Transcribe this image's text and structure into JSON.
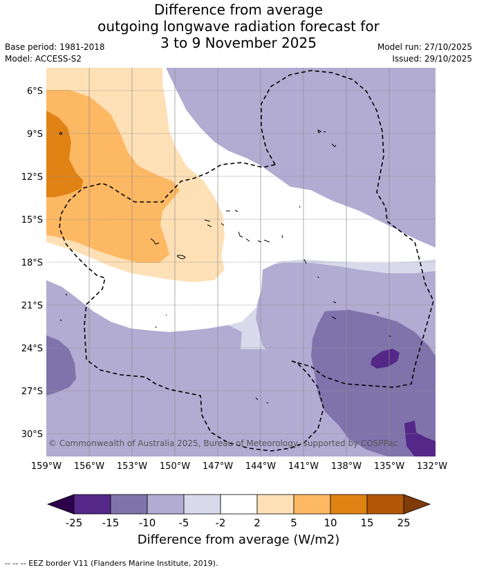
{
  "title": {
    "line1": "Difference from average",
    "line2": "outgoing longwave radiation forecast for",
    "line3": "3 to 9 November 2025"
  },
  "meta": {
    "base_period": "Base period: 1981-2018",
    "model": "Model: ACCESS-S2",
    "model_run": "Model run: 27/10/2025",
    "issued": "Issued: 29/10/2025"
  },
  "map": {
    "lat_labels": [
      "6°S",
      "9°S",
      "12°S",
      "15°S",
      "18°S",
      "21°S",
      "24°S",
      "27°S",
      "30°S"
    ],
    "lon_labels": [
      "159°W",
      "156°W",
      "153°W",
      "150°W",
      "147°W",
      "144°W",
      "141°W",
      "138°W",
      "135°W",
      "132°W"
    ],
    "copyright": "© Commonwealth of Australia 2025, Bureau of Meteorology, supported by COSPPac"
  },
  "legend": {
    "ticks": [
      "-25",
      "-15",
      "-10",
      "-5",
      "-2",
      "2",
      "5",
      "10",
      "15",
      "25"
    ],
    "colors": [
      "#2d004b",
      "#542788",
      "#8073ac",
      "#b2abd2",
      "#d8daeb",
      "#ffffff",
      "#fee0b6",
      "#fdb863",
      "#e08214",
      "#b35806",
      "#7f3b08"
    ],
    "title": "Difference from average (W/m2)"
  },
  "footnote": "--  --  -- EEZ border V11 (Flanders Marine Institute, 2019)."
}
